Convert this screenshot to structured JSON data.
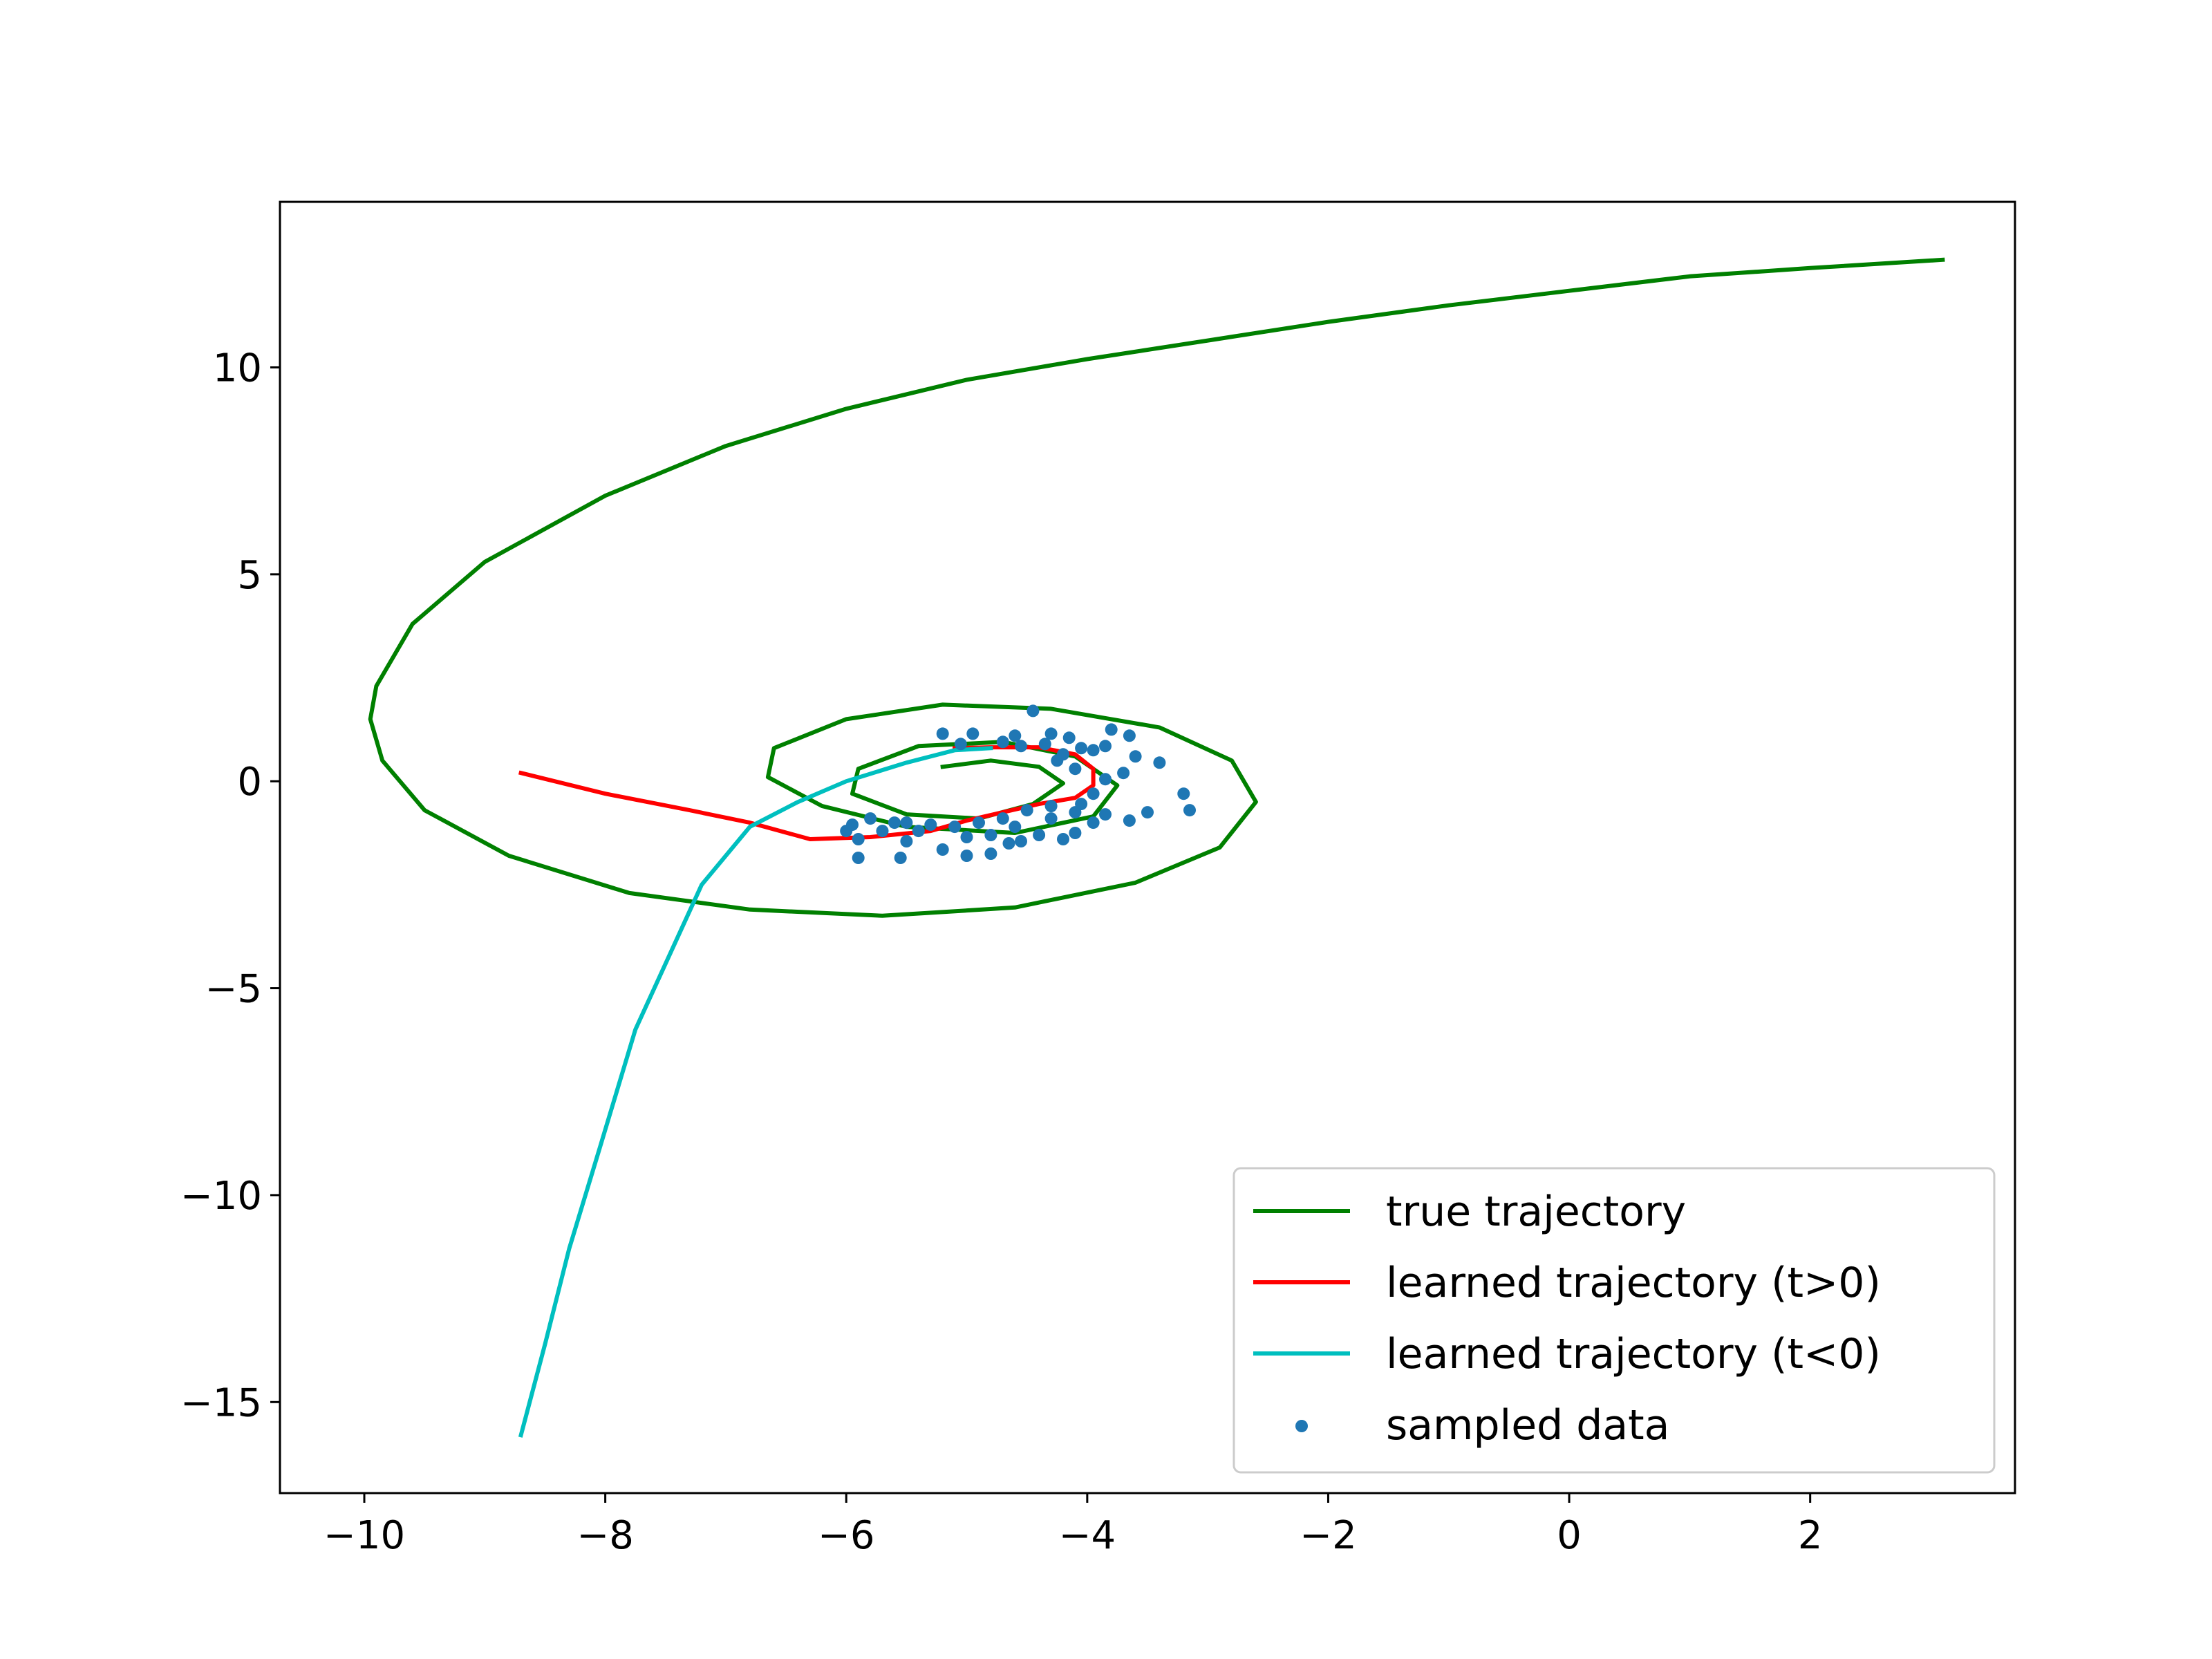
{
  "chart_data": {
    "type": "line",
    "title": "",
    "xlabel": "",
    "ylabel": "",
    "xlim": [
      -10.7,
      3.7
    ],
    "ylim": [
      -17.2,
      14.0
    ],
    "grid": false,
    "legend_position": "lower-right",
    "x_ticks": [
      -10,
      -8,
      -6,
      -4,
      -2,
      0,
      2
    ],
    "y_ticks": [
      -15,
      -10,
      -5,
      0,
      5,
      10
    ],
    "x_tick_labels": [
      "−10",
      "−8",
      "−6",
      "−4",
      "−2",
      "0",
      "2"
    ],
    "y_tick_labels": [
      "−15",
      "−10",
      "−5",
      "0",
      "5",
      "10"
    ],
    "series": [
      {
        "name": "true trajectory",
        "kind": "line",
        "color": "#008000",
        "points": [
          [
            3.1,
            12.6
          ],
          [
            2.0,
            12.4
          ],
          [
            1.0,
            12.2
          ],
          [
            0.0,
            11.85
          ],
          [
            -1.0,
            11.5
          ],
          [
            -2.0,
            11.1
          ],
          [
            -3.0,
            10.65
          ],
          [
            -4.0,
            10.2
          ],
          [
            -5.0,
            9.7
          ],
          [
            -6.0,
            9.0
          ],
          [
            -7.0,
            8.1
          ],
          [
            -8.0,
            6.9
          ],
          [
            -9.0,
            5.3
          ],
          [
            -9.6,
            3.8
          ],
          [
            -9.9,
            2.3
          ],
          [
            -9.95,
            1.5
          ],
          [
            -9.85,
            0.5
          ],
          [
            -9.5,
            -0.7
          ],
          [
            -8.8,
            -1.8
          ],
          [
            -7.8,
            -2.7
          ],
          [
            -6.8,
            -3.1
          ],
          [
            -5.7,
            -3.25
          ],
          [
            -4.6,
            -3.05
          ],
          [
            -3.6,
            -2.45
          ],
          [
            -2.9,
            -1.6
          ],
          [
            -2.6,
            -0.5
          ],
          [
            -2.8,
            0.5
          ],
          [
            -3.4,
            1.3
          ],
          [
            -4.3,
            1.75
          ],
          [
            -5.2,
            1.85
          ],
          [
            -6.0,
            1.5
          ],
          [
            -6.6,
            0.8
          ],
          [
            -6.65,
            0.1
          ],
          [
            -6.2,
            -0.6
          ],
          [
            -5.5,
            -1.1
          ],
          [
            -4.6,
            -1.25
          ],
          [
            -3.95,
            -0.85
          ],
          [
            -3.75,
            -0.1
          ],
          [
            -4.1,
            0.6
          ],
          [
            -4.7,
            0.95
          ],
          [
            -5.4,
            0.85
          ],
          [
            -5.9,
            0.3
          ],
          [
            -5.95,
            -0.3
          ],
          [
            -5.5,
            -0.8
          ],
          [
            -4.9,
            -0.9
          ],
          [
            -4.45,
            -0.55
          ],
          [
            -4.2,
            -0.05
          ],
          [
            -4.4,
            0.35
          ],
          [
            -4.8,
            0.5
          ],
          [
            -5.2,
            0.35
          ]
        ]
      },
      {
        "name": "learned trajectory (t>0)",
        "kind": "line",
        "color": "#ff0000",
        "points": [
          [
            -8.7,
            0.2
          ],
          [
            -8.0,
            -0.3
          ],
          [
            -7.3,
            -0.7
          ],
          [
            -6.8,
            -1.0
          ],
          [
            -6.3,
            -1.4
          ],
          [
            -5.8,
            -1.35
          ],
          [
            -5.3,
            -1.2
          ],
          [
            -5.0,
            -0.95
          ],
          [
            -4.7,
            -0.75
          ],
          [
            -4.4,
            -0.55
          ],
          [
            -4.1,
            -0.4
          ],
          [
            -3.95,
            -0.1
          ],
          [
            -3.95,
            0.3
          ],
          [
            -4.1,
            0.65
          ],
          [
            -4.4,
            0.82
          ],
          [
            -4.8,
            0.82
          ],
          [
            -5.1,
            0.8
          ]
        ]
      },
      {
        "name": "learned trajectory (t<0)",
        "kind": "line",
        "color": "#00bfbf",
        "points": [
          [
            -4.8,
            0.8
          ],
          [
            -5.1,
            0.75
          ],
          [
            -5.5,
            0.45
          ],
          [
            -6.0,
            0.0
          ],
          [
            -6.4,
            -0.5
          ],
          [
            -6.8,
            -1.1
          ],
          [
            -7.2,
            -2.5
          ],
          [
            -7.75,
            -6.0
          ],
          [
            -8.05,
            -8.9
          ],
          [
            -8.3,
            -11.3
          ],
          [
            -8.5,
            -13.6
          ],
          [
            -8.7,
            -15.8
          ]
        ]
      },
      {
        "name": "sampled data",
        "kind": "scatter",
        "color": "#1f77b4",
        "points": [
          [
            -4.45,
            1.7
          ],
          [
            -3.8,
            1.25
          ],
          [
            -3.65,
            1.1
          ],
          [
            -5.2,
            1.15
          ],
          [
            -4.95,
            1.15
          ],
          [
            -4.6,
            1.1
          ],
          [
            -4.3,
            1.15
          ],
          [
            -4.15,
            1.05
          ],
          [
            -4.05,
            0.8
          ],
          [
            -3.95,
            0.75
          ],
          [
            -3.85,
            0.85
          ],
          [
            -3.6,
            0.6
          ],
          [
            -3.4,
            0.45
          ],
          [
            -3.7,
            0.2
          ],
          [
            -3.85,
            0.05
          ],
          [
            -3.2,
            -0.3
          ],
          [
            -3.15,
            -0.7
          ],
          [
            -3.5,
            -0.75
          ],
          [
            -3.65,
            -0.95
          ],
          [
            -3.85,
            -0.8
          ],
          [
            -3.95,
            -1.0
          ],
          [
            -4.1,
            -1.25
          ],
          [
            -4.2,
            -1.4
          ],
          [
            -4.4,
            -1.3
          ],
          [
            -4.55,
            -1.45
          ],
          [
            -4.65,
            -1.5
          ],
          [
            -4.8,
            -1.3
          ],
          [
            -4.9,
            -1.0
          ],
          [
            -5.0,
            -1.8
          ],
          [
            -5.2,
            -1.65
          ],
          [
            -5.4,
            -1.2
          ],
          [
            -5.5,
            -1.45
          ],
          [
            -5.6,
            -1.0
          ],
          [
            -5.7,
            -1.2
          ],
          [
            -5.8,
            -0.9
          ],
          [
            -5.9,
            -1.4
          ],
          [
            -5.95,
            -1.05
          ],
          [
            -6.0,
            -1.2
          ],
          [
            -5.9,
            -1.85
          ],
          [
            -5.55,
            -1.85
          ],
          [
            -4.8,
            -1.75
          ],
          [
            -5.3,
            -1.05
          ],
          [
            -5.0,
            -1.35
          ],
          [
            -4.6,
            -1.1
          ],
          [
            -4.3,
            -0.9
          ],
          [
            -4.1,
            -0.75
          ],
          [
            -4.05,
            -0.55
          ],
          [
            -3.95,
            -0.3
          ],
          [
            -4.3,
            -0.6
          ],
          [
            -4.5,
            -0.7
          ],
          [
            -4.7,
            -0.9
          ],
          [
            -5.1,
            -1.1
          ],
          [
            -5.5,
            -1.0
          ],
          [
            -4.25,
            0.5
          ],
          [
            -4.1,
            0.3
          ],
          [
            -4.55,
            0.85
          ],
          [
            -4.7,
            0.95
          ],
          [
            -5.05,
            0.9
          ],
          [
            -4.35,
            0.9
          ],
          [
            -4.2,
            0.65
          ]
        ]
      }
    ]
  }
}
